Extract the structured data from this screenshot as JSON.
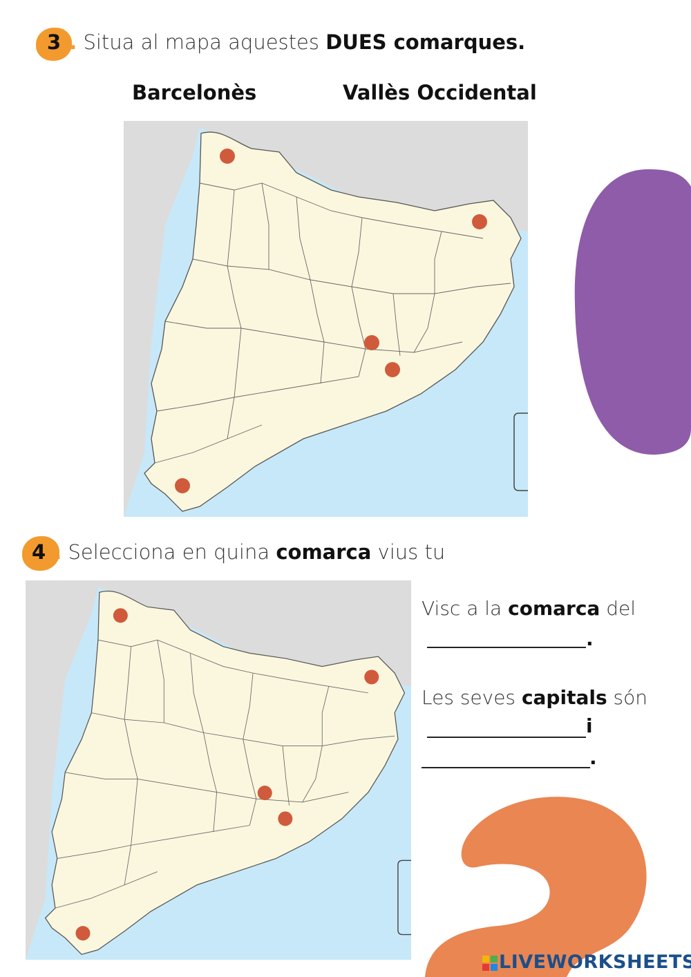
{
  "colors": {
    "badge": "#f29a2e",
    "pin": "#d05a3c",
    "land": "#fbf7de",
    "foreign_land": "#dcdcdc",
    "sea": "#c7e8f8",
    "purple_blob": "#8e5ca8",
    "orange_blob": "#e98652",
    "logo": "#1a4f8a"
  },
  "q3": {
    "number": "3",
    "dash": "-.",
    "text_plain": "Situa al mapa aquestes",
    "text_bold": "DUES comarques.",
    "targets": [
      "Barcelonès",
      "Vallès Occidental"
    ]
  },
  "q4": {
    "number": "4",
    "dash": "-.",
    "text_plain": "Selecciona en quina",
    "text_bold": "comarca",
    "text_end": "vius tu"
  },
  "answers": {
    "line1_plain": "Visc a la",
    "line1_bold": "comarca",
    "line1_end": "del",
    "period": ".",
    "line2_plain": "Les seves",
    "line2_bold": "capitals",
    "line2_end": "són",
    "conjunction": "i",
    "comarca_value": "",
    "capital1_value": "",
    "capital2_value": ""
  },
  "map_pins": [
    "pin-north-west",
    "pin-north-east",
    "pin-inland",
    "pin-coast",
    "pin-south"
  ],
  "icons": {
    "pin": "circle-marker",
    "logo": "liveworksheets-logo"
  },
  "footer": {
    "logo_text": "LIVEWORKSHEETS"
  }
}
